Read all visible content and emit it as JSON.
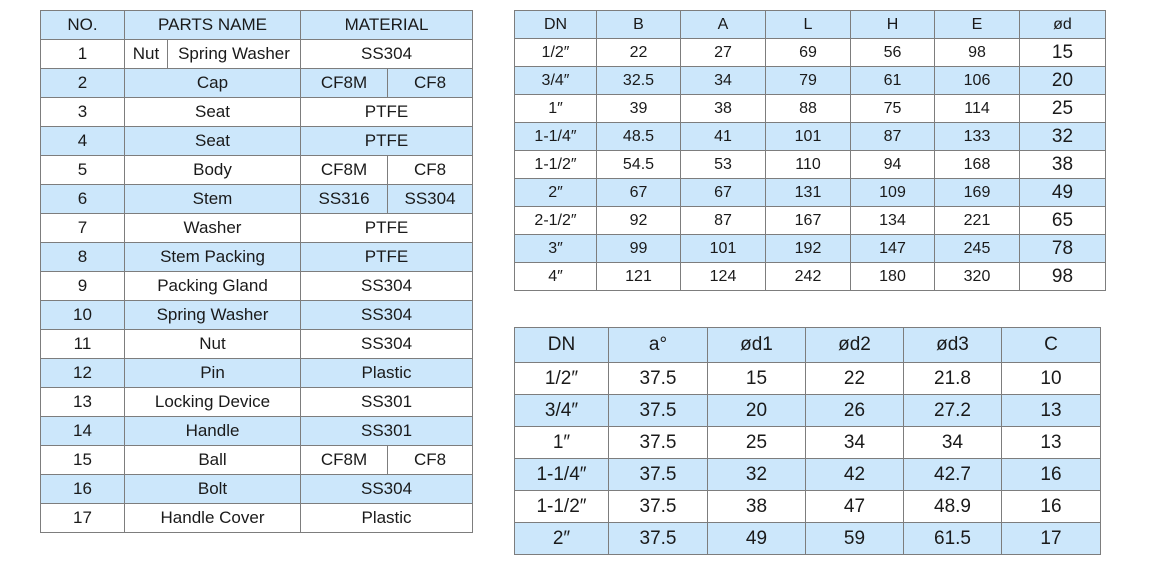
{
  "parts_table": {
    "headers": [
      "NO.",
      "PARTS NAME",
      "MATERIAL"
    ],
    "rows": [
      {
        "no": "1",
        "name_a": "Nut",
        "name_b": "Spring Washer",
        "material": "SS304"
      },
      {
        "no": "2",
        "name": "Cap",
        "mat_a": "CF8M",
        "mat_b": "CF8"
      },
      {
        "no": "3",
        "name": "Seat",
        "material": "PTFE"
      },
      {
        "no": "4",
        "name": "Seat",
        "material": "PTFE"
      },
      {
        "no": "5",
        "name": "Body",
        "mat_a": "CF8M",
        "mat_b": "CF8"
      },
      {
        "no": "6",
        "name": "Stem",
        "mat_a": "SS316",
        "mat_b": "SS304"
      },
      {
        "no": "7",
        "name": "Washer",
        "material": "PTFE"
      },
      {
        "no": "8",
        "name": "Stem Packing",
        "material": "PTFE"
      },
      {
        "no": "9",
        "name": "Packing Gland",
        "material": "SS304"
      },
      {
        "no": "10",
        "name": "Spring Washer",
        "material": "SS304"
      },
      {
        "no": "11",
        "name": "Nut",
        "material": "SS304"
      },
      {
        "no": "12",
        "name": "Pin",
        "material": "Plastic"
      },
      {
        "no": "13",
        "name": "Locking Device",
        "material": "SS301"
      },
      {
        "no": "14",
        "name": "Handle",
        "material": "SS301"
      },
      {
        "no": "15",
        "name": "Ball",
        "mat_a": "CF8M",
        "mat_b": "CF8"
      },
      {
        "no": "16",
        "name": "Bolt",
        "material": "SS304"
      },
      {
        "no": "17",
        "name": "Handle Cover",
        "material": "Plastic"
      }
    ]
  },
  "dimension_table_1": {
    "headers": [
      "DN",
      "B",
      "A",
      "L",
      "H",
      "E",
      "ød"
    ],
    "rows": [
      [
        "1/2″",
        "22",
        "27",
        "69",
        "56",
        "98",
        "15"
      ],
      [
        "3/4″",
        "32.5",
        "34",
        "79",
        "61",
        "106",
        "20"
      ],
      [
        "1″",
        "39",
        "38",
        "88",
        "75",
        "114",
        "25"
      ],
      [
        "1-1/4″",
        "48.5",
        "41",
        "101",
        "87",
        "133",
        "32"
      ],
      [
        "1-1/2″",
        "54.5",
        "53",
        "110",
        "94",
        "168",
        "38"
      ],
      [
        "2″",
        "67",
        "67",
        "131",
        "109",
        "169",
        "49"
      ],
      [
        "2-1/2″",
        "92",
        "87",
        "167",
        "134",
        "221",
        "65"
      ],
      [
        "3″",
        "99",
        "101",
        "192",
        "147",
        "245",
        "78"
      ],
      [
        "4″",
        "121",
        "124",
        "242",
        "180",
        "320",
        "98"
      ]
    ]
  },
  "dimension_table_2": {
    "headers": [
      "DN",
      "a°",
      "ød1",
      "ød2",
      "ød3",
      "C"
    ],
    "rows": [
      [
        "1/2″",
        "37.5",
        "15",
        "22",
        "21.8",
        "10"
      ],
      [
        "3/4″",
        "37.5",
        "20",
        "26",
        "27.2",
        "13"
      ],
      [
        "1″",
        "37.5",
        "25",
        "34",
        "34",
        "13"
      ],
      [
        "1-1/4″",
        "37.5",
        "32",
        "42",
        "42.7",
        "16"
      ],
      [
        "1-1/2″",
        "37.5",
        "38",
        "47",
        "48.9",
        "16"
      ],
      [
        "2″",
        "37.5",
        "49",
        "59",
        "61.5",
        "17"
      ]
    ]
  },
  "colors": {
    "row_highlight": "#cce7fb",
    "border": "#7d7d7d",
    "text": "#1a1a1a"
  }
}
